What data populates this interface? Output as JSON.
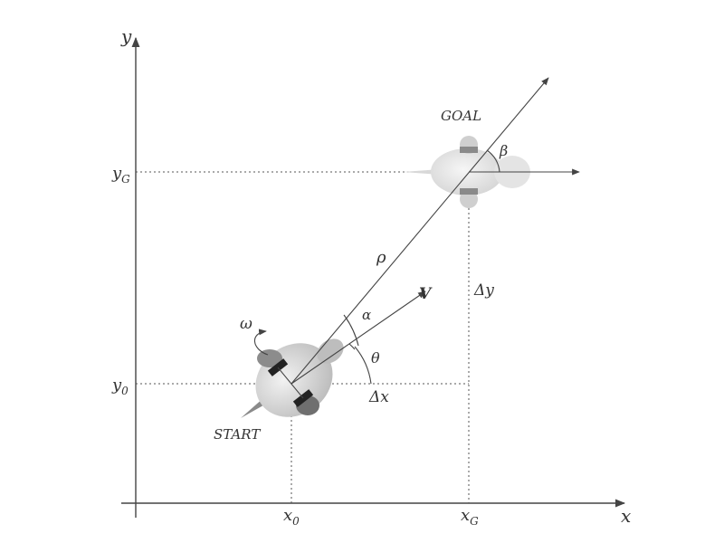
{
  "axes": {
    "x_label": "x",
    "y_label": "y"
  },
  "ticks": {
    "x0": "x",
    "x0_sub": "0",
    "xG": "x",
    "xG_sub": "G",
    "y0": "y",
    "y0_sub": "0",
    "yG": "y",
    "yG_sub": "G"
  },
  "labels": {
    "start": "START",
    "goal": "GOAL",
    "rho": "ρ",
    "velocity": "V",
    "alpha": "α",
    "theta": "θ",
    "beta": "β",
    "omega": "ω",
    "delta_x": "Δx",
    "delta_y": "Δy"
  },
  "colors": {
    "axis": "#444444",
    "robot_body": "#d9d9d9",
    "robot_wheel": "#222222",
    "goal_robot": "#e2e2e2",
    "goal_wheel": "#777777"
  }
}
